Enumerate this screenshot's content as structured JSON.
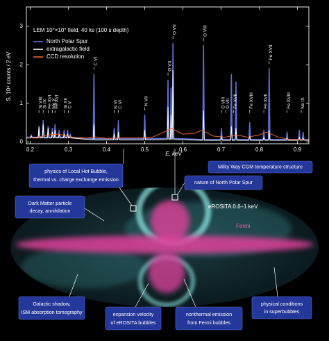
{
  "chart_data": {
    "type": "line",
    "title": "LEM 10°×10° field, 40 ks (100 s depth)",
    "x_label": "E, keV",
    "y_label": "S, 10⁴ counts / 2 eV",
    "xlim": [
      0.19,
      0.93
    ],
    "ylim": [
      -0.05,
      3.5
    ],
    "xticks": [
      0.2,
      0.3,
      0.4,
      0.5,
      0.6,
      0.7,
      0.8,
      0.9
    ],
    "yticks": [
      0,
      1,
      2,
      3
    ],
    "legend": "upper left",
    "x": [
      0.19,
      0.201,
      0.203,
      0.205,
      0.221,
      0.223,
      0.225,
      0.232,
      0.234,
      0.236,
      0.245,
      0.247,
      0.249,
      0.256,
      0.258,
      0.26,
      0.263,
      0.265,
      0.267,
      0.274,
      0.276,
      0.278,
      0.287,
      0.289,
      0.291,
      0.296,
      0.298,
      0.3,
      0.303,
      0.305,
      0.307,
      0.365,
      0.367,
      0.369,
      0.418,
      0.42,
      0.422,
      0.429,
      0.431,
      0.433,
      0.498,
      0.5,
      0.502,
      0.559,
      0.561,
      0.563,
      0.567,
      0.569,
      0.571,
      0.572,
      0.574,
      0.576,
      0.652,
      0.654,
      0.656,
      0.699,
      0.701,
      0.703,
      0.725,
      0.727,
      0.729,
      0.737,
      0.739,
      0.741,
      0.773,
      0.775,
      0.777,
      0.81,
      0.812,
      0.814,
      0.824,
      0.826,
      0.828,
      0.871,
      0.873,
      0.875,
      0.903,
      0.905,
      0.907,
      0.913,
      0.915,
      0.917,
      0.93
    ],
    "series": [
      {
        "name": "North Polar Spur",
        "color": "#5b6fd6",
        "values": [
          0.12,
          0.12,
          0.18,
          0.12,
          0.12,
          0.35,
          0.12,
          0.12,
          0.55,
          0.12,
          0.12,
          0.4,
          0.12,
          0.12,
          0.35,
          0.12,
          0.12,
          0.45,
          0.12,
          0.12,
          0.3,
          0.12,
          0.12,
          0.3,
          0.12,
          0.12,
          0.3,
          0.12,
          0.12,
          0.2,
          0.12,
          0.08,
          1.75,
          0.08,
          0.08,
          0.35,
          0.08,
          0.08,
          0.55,
          0.08,
          0.08,
          0.7,
          0.08,
          0.09,
          1.6,
          0.09,
          0.09,
          1.4,
          0.09,
          0.09,
          2.55,
          0.09,
          0.06,
          2.5,
          0.06,
          0.06,
          0.35,
          0.06,
          0.06,
          1.75,
          0.06,
          0.06,
          1.55,
          0.06,
          0.06,
          0.5,
          0.06,
          0.06,
          0.3,
          0.06,
          0.06,
          1.9,
          0.06,
          0.06,
          0.25,
          0.06,
          0.06,
          0.3,
          0.06,
          0.06,
          0.25,
          0.06,
          0.06
        ]
      },
      {
        "name": "extragalactic field",
        "color": "#ffffff",
        "values": [
          0.1,
          0.1,
          0.15,
          0.1,
          0.1,
          0.4,
          0.1,
          0.1,
          0.45,
          0.1,
          0.1,
          0.35,
          0.1,
          0.1,
          0.25,
          0.1,
          0.1,
          0.3,
          0.1,
          0.1,
          0.2,
          0.1,
          0.1,
          0.2,
          0.1,
          0.1,
          0.2,
          0.1,
          0.1,
          0.15,
          0.1,
          0.05,
          0.45,
          0.05,
          0.05,
          0.2,
          0.05,
          0.05,
          0.25,
          0.05,
          0.05,
          0.3,
          0.05,
          0.06,
          0.9,
          0.06,
          0.06,
          0.7,
          0.06,
          0.06,
          1.85,
          0.06,
          0.04,
          0.8,
          0.04,
          0.04,
          0.15,
          0.04,
          0.04,
          0.4,
          0.04,
          0.04,
          0.35,
          0.04,
          0.04,
          0.15,
          0.04,
          0.04,
          0.12,
          0.04,
          0.04,
          0.3,
          0.04,
          0.04,
          0.1,
          0.04,
          0.04,
          0.12,
          0.04,
          0.04,
          0.1,
          0.04,
          0.04
        ]
      },
      {
        "name": "CCD resolution",
        "color": "#e8672a",
        "x": [
          0.19,
          0.22,
          0.25,
          0.27,
          0.29,
          0.32,
          0.35,
          0.37,
          0.4,
          0.44,
          0.48,
          0.52,
          0.55,
          0.57,
          0.6,
          0.63,
          0.65,
          0.68,
          0.71,
          0.74,
          0.77,
          0.8,
          0.82,
          0.85,
          0.88,
          0.93
        ],
        "values": [
          0.1,
          0.12,
          0.18,
          0.2,
          0.17,
          0.1,
          0.1,
          0.13,
          0.09,
          0.1,
          0.1,
          0.12,
          0.25,
          0.35,
          0.2,
          0.22,
          0.3,
          0.15,
          0.12,
          0.18,
          0.12,
          0.18,
          0.25,
          0.12,
          0.06,
          0.05
        ]
      }
    ],
    "annotations": [
      {
        "label": "Si VIII",
        "x": 0.223
      },
      {
        "label": "Si IX",
        "x": 0.234
      },
      {
        "label": "Fe XVI",
        "x": 0.247
      },
      {
        "label": "Mg X",
        "x": 0.258
      },
      {
        "label": "Fe XVI",
        "x": 0.265
      },
      {
        "label": "Si XII",
        "x": 0.289
      },
      {
        "label": "C V",
        "x": 0.3
      },
      {
        "label": "C VI",
        "x": 0.367
      },
      {
        "label": "N VI",
        "x": 0.42
      },
      {
        "label": "C VI",
        "x": 0.431
      },
      {
        "label": "N VII",
        "x": 0.5
      },
      {
        "label": "O VII",
        "x": 0.561
      },
      {
        "label": "O VII",
        "x": 0.574
      },
      {
        "label": "O VIII",
        "x": 0.654
      },
      {
        "label": "O VIII",
        "x": 0.701
      },
      {
        "label": "O VII",
        "x": 0.713
      },
      {
        "label": "Fe XVII",
        "x": 0.733
      },
      {
        "label": "Fe XVIII",
        "x": 0.775
      },
      {
        "label": "Fe XVII",
        "x": 0.812
      },
      {
        "label": "Fe XVII",
        "x": 0.826
      },
      {
        "label": "Fe XVIII",
        "x": 0.873
      },
      {
        "label": "Ne IX",
        "x": 0.91
      }
    ]
  },
  "sky_map": {
    "erosita_label": "eROSITA 0.6–1 keV",
    "fermi_label": "Fermi"
  },
  "callouts": [
    {
      "lines": [
        "physics of Local Hot Bubble,",
        "thermal vs. charge exchange emission"
      ]
    },
    {
      "lines": [
        "nature of North Polar Spur"
      ]
    },
    {
      "lines": [
        "Milky Way CGM temperature structure"
      ]
    },
    {
      "lines": [
        "Dark Matter particle",
        "decay, annihilation"
      ]
    },
    {
      "lines": [
        "Galactic shadow,",
        "ISM absorption tomography"
      ]
    },
    {
      "lines": [
        "expansion velocity",
        "of eROSITA bubbles"
      ]
    },
    {
      "lines": [
        "nonthermal emission",
        "from Fermi bubbles"
      ]
    },
    {
      "lines": [
        "physical conditions",
        "in superbubbles"
      ]
    }
  ]
}
